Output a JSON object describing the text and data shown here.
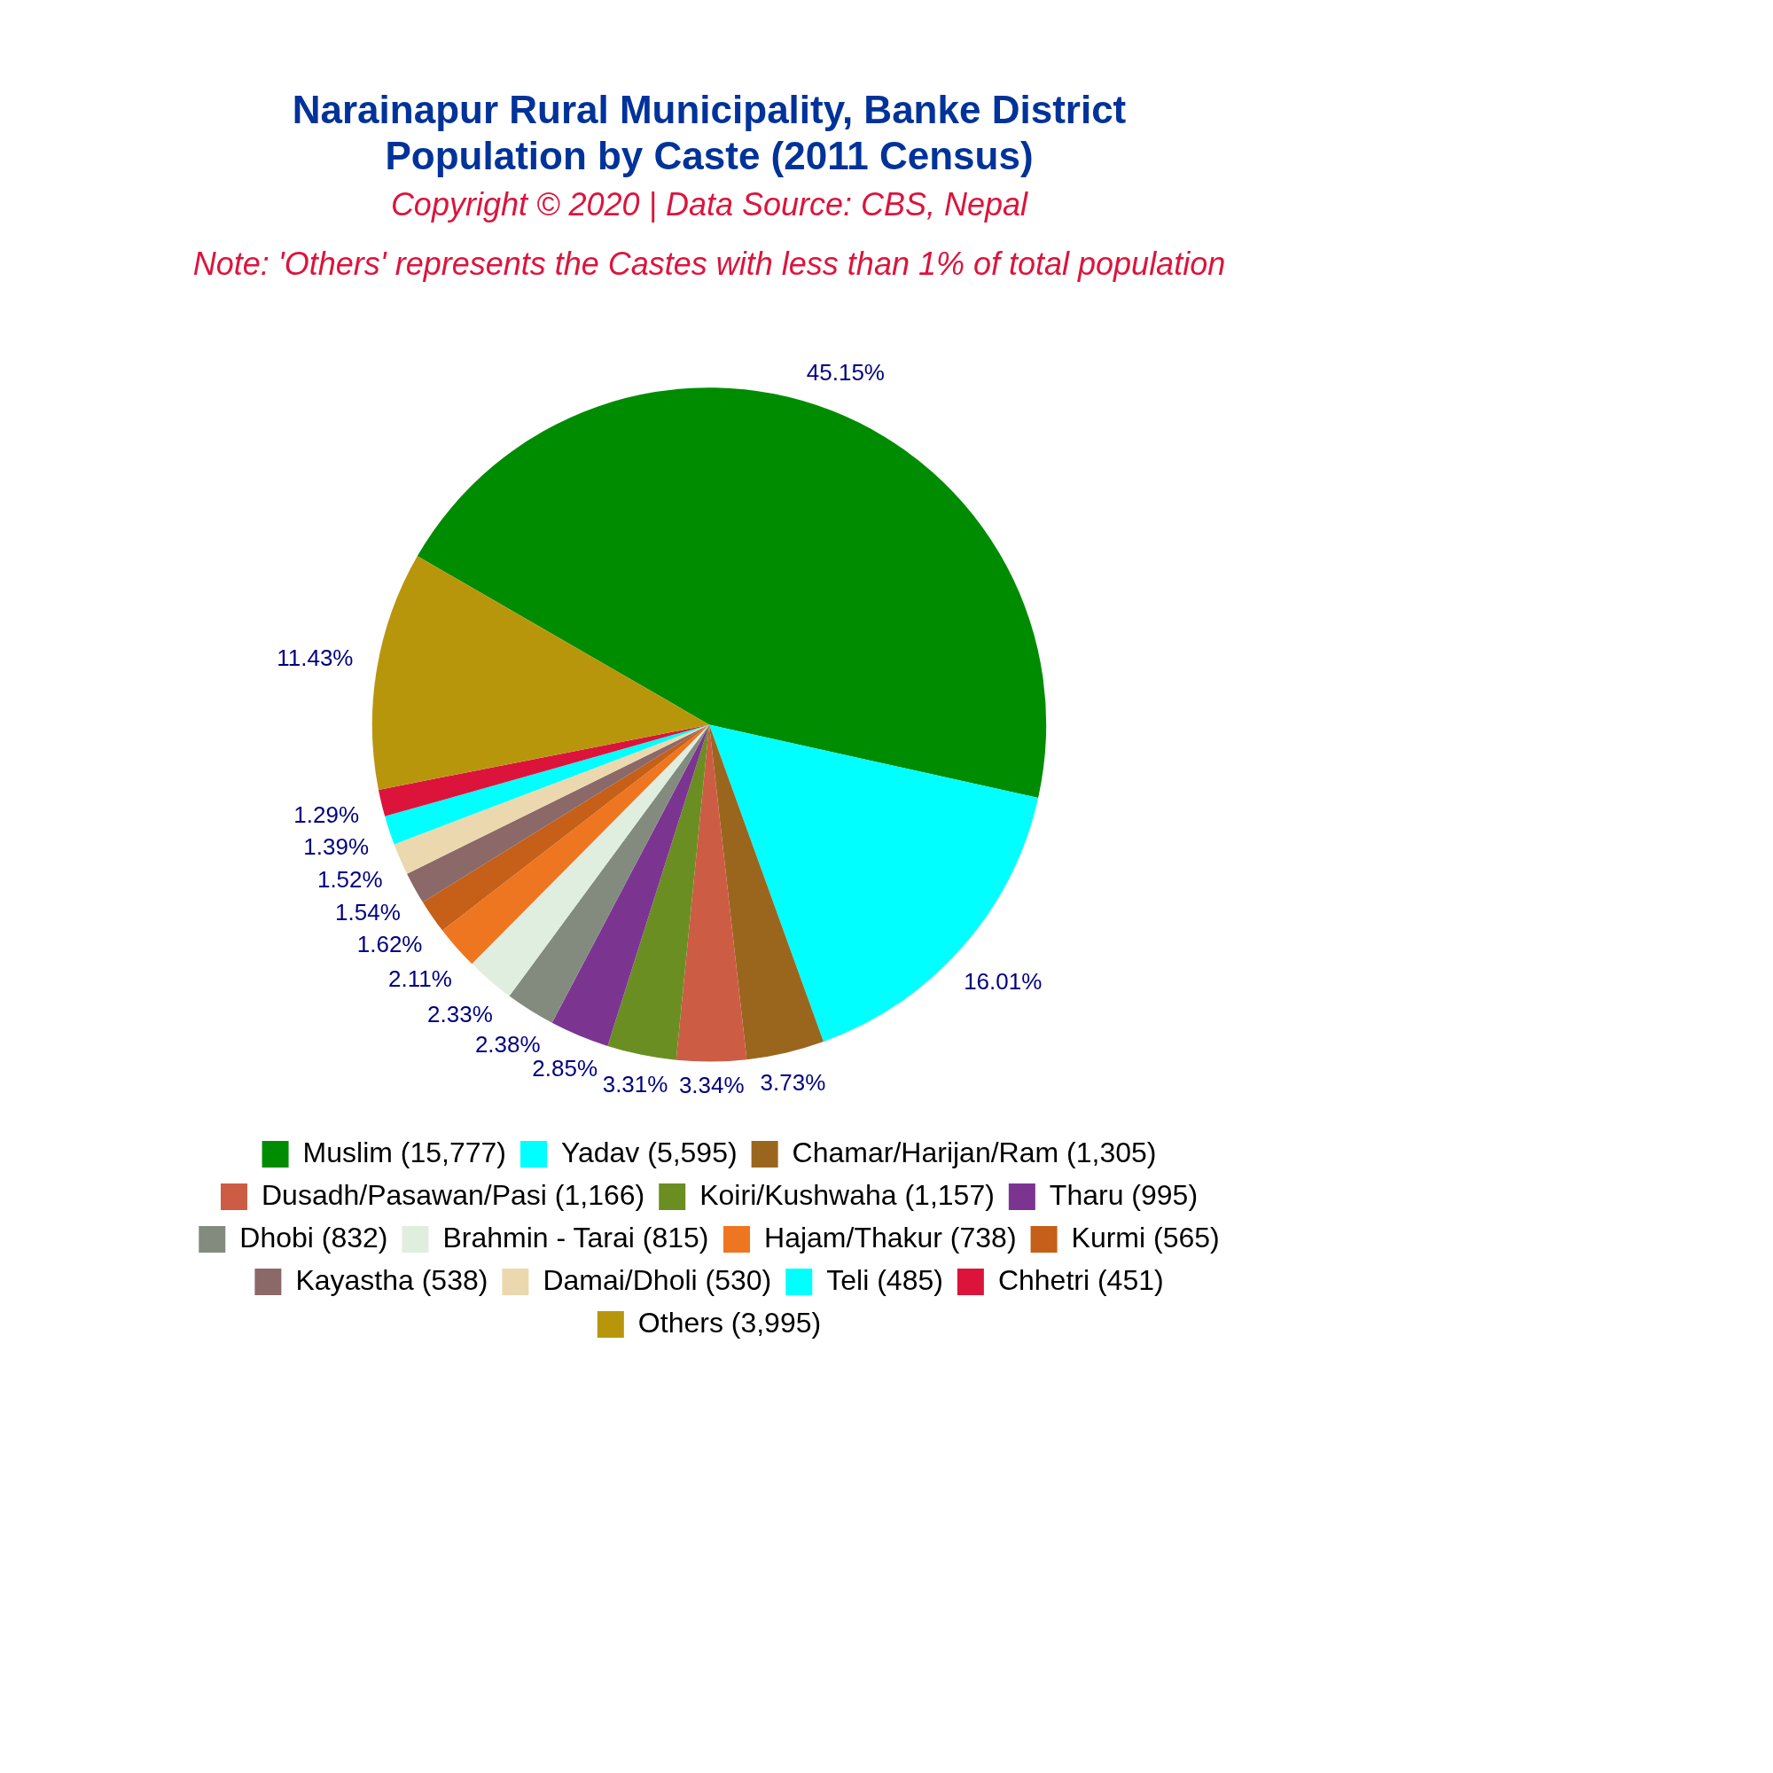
{
  "chart_data": {
    "type": "pie",
    "title": "Narainapur Rural Municipality, Banke District\nPopulation by Caste (2011 Census)",
    "subtitle": "Copyright © 2020 | Data Source: CBS, Nepal",
    "annotations": [
      "Note: 'Others' represents the Castes with less than 1% of total population"
    ],
    "categories": [
      "Muslim (15,777)",
      "Yadav (5,595)",
      "Chamar/Harijan/Ram (1,305)",
      "Dusadh/Pasawan/Pasi (1,166)",
      "Koiri/Kushwaha (1,157)",
      "Tharu (995)",
      "Dhobi (832)",
      "Brahmin - Tarai (815)",
      "Hajam/Thakur (738)",
      "Kurmi (565)",
      "Kayastha (538)",
      "Damai/Dholi (530)",
      "Teli (485)",
      "Chhetri (451)",
      "Others (3,995)"
    ],
    "values": [
      45.15,
      16.01,
      3.73,
      3.34,
      3.31,
      2.85,
      2.38,
      2.33,
      2.11,
      1.62,
      1.54,
      1.52,
      1.39,
      1.29,
      11.43
    ],
    "value_labels": [
      "45.15%",
      "16.01%",
      "3.73%",
      "3.34%",
      "3.31%",
      "2.85%",
      "2.38%",
      "2.33%",
      "2.11%",
      "1.62%",
      "1.54%",
      "1.52%",
      "1.39%",
      "1.29%",
      "11.43%"
    ],
    "colors": [
      "#008c00",
      "#00ffff",
      "#9a661e",
      "#cd5c45",
      "#6b8e23",
      "#7b3591",
      "#838b7f",
      "#e0eee0",
      "#ee7621",
      "#c65f17",
      "#8b6969",
      "#ecd8ae",
      "#00ffff",
      "#dc143c",
      "#b8960c"
    ],
    "legend": "bottom"
  }
}
